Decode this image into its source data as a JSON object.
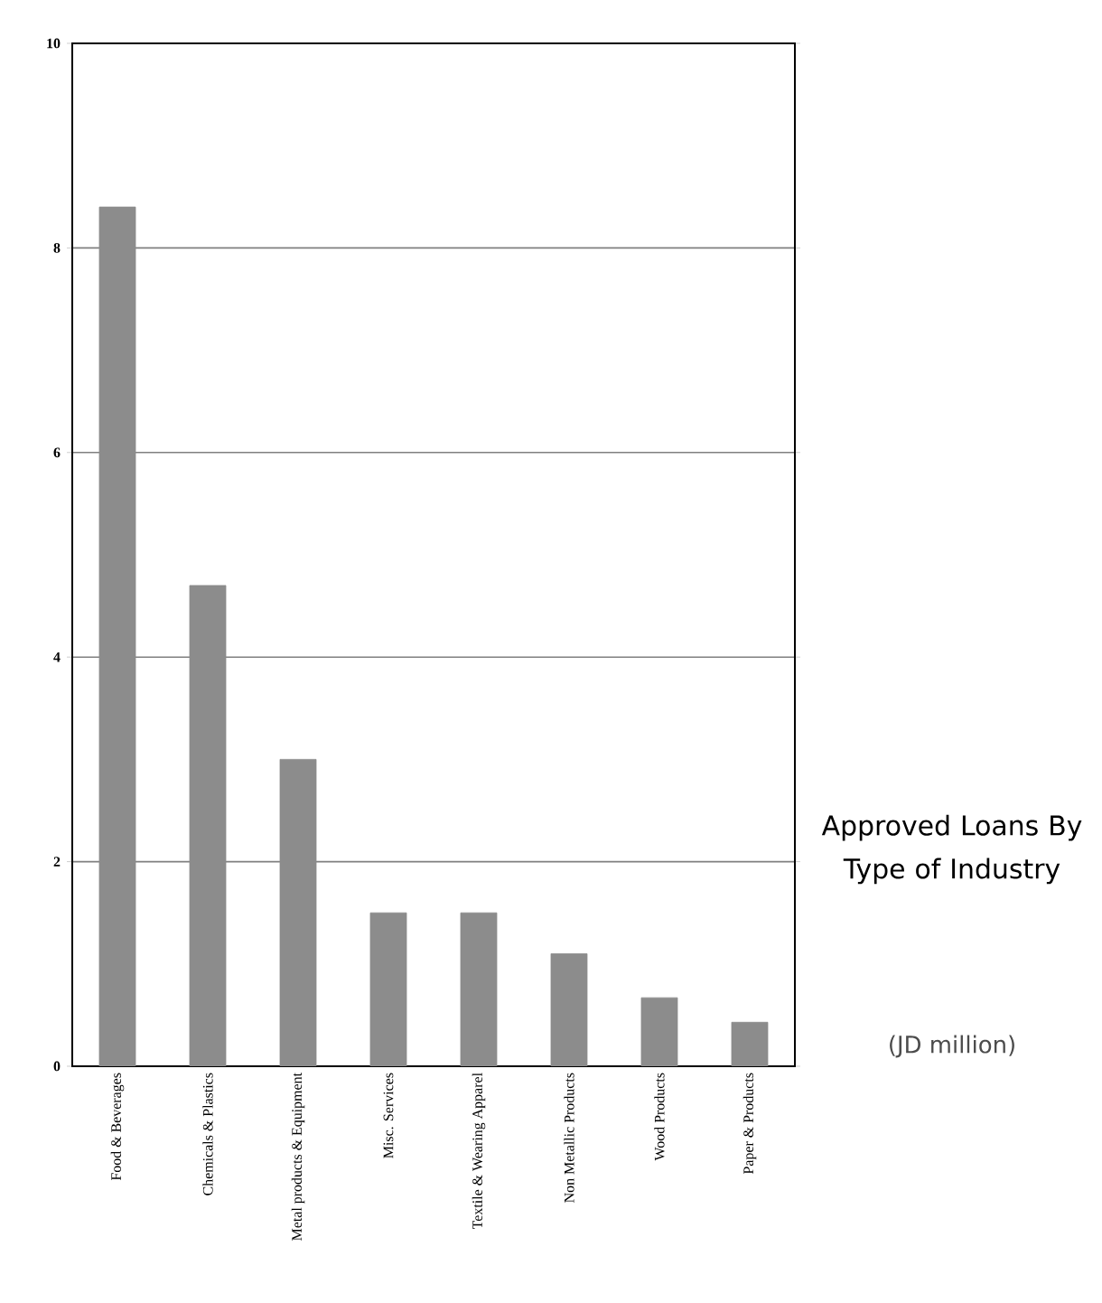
{
  "chart_data": {
    "type": "bar",
    "title": "Approved Loans By Type of Industry",
    "subtitle": "(JD million)",
    "categories": [
      "Food & Beverages",
      "Chemicals & Plastics",
      "Metal products & Equipment",
      "Misc. Services",
      "Textile & Wearing Apparel",
      "Non Metallic Products",
      "Wood Products",
      "Paper & Products"
    ],
    "values": [
      8.4,
      4.7,
      3.0,
      1.5,
      1.5,
      1.1,
      0.67,
      0.43
    ],
    "color": "#8c8c8c",
    "ylim": [
      0,
      10
    ],
    "yticks": [
      0,
      2,
      4,
      6,
      8,
      10
    ],
    "grid": "y"
  }
}
